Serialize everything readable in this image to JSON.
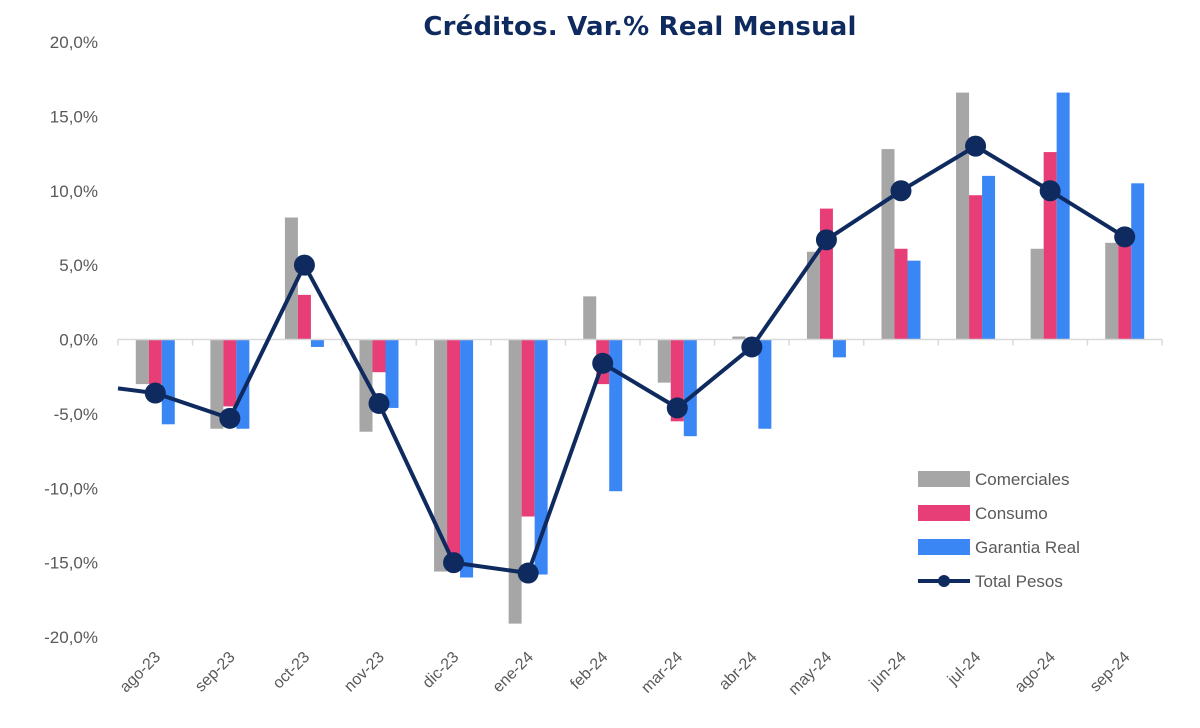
{
  "chart_data": {
    "type": "bar",
    "title": "Créditos. Var.% Real Mensual",
    "xlabel": "",
    "ylabel": "",
    "ylim": [
      -20,
      20
    ],
    "yticks": [
      "20,0%",
      "15,0%",
      "10,0%",
      "5,0%",
      "0,0%",
      "-5,0%",
      "-10,0%",
      "-15,0%",
      "-20,0%"
    ],
    "ytick_values": [
      20,
      15,
      10,
      5,
      0,
      -5,
      -10,
      -15,
      -20
    ],
    "categories": [
      "ago-23",
      "sep-23",
      "oct-23",
      "nov-23",
      "dic-23",
      "ene-24",
      "feb-24",
      "mar-24",
      "abr-24",
      "may-24",
      "jun-24",
      "jul-24",
      "ago-24",
      "sep-24"
    ],
    "series": [
      {
        "name": "Comerciales",
        "type": "bar",
        "color": "#a6a6a6",
        "values": [
          -3.0,
          -6.0,
          8.2,
          -6.2,
          -15.6,
          -19.1,
          2.9,
          -2.9,
          0.2,
          5.9,
          12.8,
          16.6,
          6.1,
          6.5
        ]
      },
      {
        "name": "Consumo",
        "type": "bar",
        "color": "#e83e78",
        "values": [
          -3.0,
          -4.5,
          3.0,
          -2.2,
          -15.0,
          -11.9,
          -3.0,
          -5.5,
          -0.5,
          8.8,
          6.1,
          9.7,
          12.6,
          6.5
        ]
      },
      {
        "name": "Garantia Real",
        "type": "bar",
        "color": "#3a86f5",
        "values": [
          -5.7,
          -6.0,
          -0.5,
          -4.6,
          -16.0,
          -15.8,
          -10.2,
          -6.5,
          -6.0,
          -1.2,
          5.3,
          11.0,
          16.6,
          10.5
        ]
      },
      {
        "name": "Total Pesos",
        "type": "line",
        "color": "#0f2a5e",
        "values": [
          -3.6,
          -5.3,
          5.0,
          -4.3,
          -15.0,
          -15.7,
          -1.6,
          -4.6,
          -0.5,
          6.7,
          10.0,
          13.0,
          10.0,
          6.9
        ]
      }
    ],
    "legend_position": "bottom-right"
  }
}
